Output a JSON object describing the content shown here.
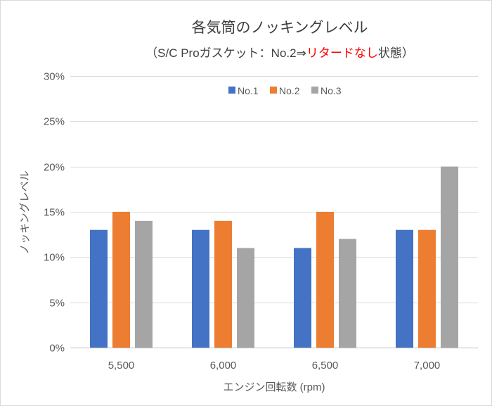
{
  "chart_data": {
    "type": "bar",
    "title": "各気筒のノッキングレベル",
    "subtitle": {
      "prefix": "（S/C Proガスケット：No.2⇒",
      "highlight": "リタードなし",
      "suffix": "状態）"
    },
    "xlabel": "エンジン回転数 (rpm)",
    "ylabel": "ノッキングレベル",
    "categories": [
      "5,500",
      "6,000",
      "6,500",
      "7,000"
    ],
    "series": [
      {
        "name": "No.1",
        "color": "#4472C4",
        "values": [
          13,
          13,
          11,
          13
        ]
      },
      {
        "name": "No.2",
        "color": "#ED7D31",
        "values": [
          15,
          14,
          15,
          13
        ]
      },
      {
        "name": "No.3",
        "color": "#A5A5A5",
        "values": [
          14,
          11,
          12,
          20
        ]
      }
    ],
    "ylim": [
      0,
      30
    ],
    "yticks": [
      {
        "value": 0,
        "label": "0%"
      },
      {
        "value": 5,
        "label": "5%"
      },
      {
        "value": 10,
        "label": "10%"
      },
      {
        "value": 15,
        "label": "15%"
      },
      {
        "value": 20,
        "label": "20%"
      },
      {
        "value": 25,
        "label": "25%"
      },
      {
        "value": 30,
        "label": "30%"
      }
    ],
    "grid": true,
    "legend": "top-center"
  },
  "colors": {
    "grid": "#D9D9D9",
    "axis": "#BFBFBF",
    "border": "#D9D9D9",
    "highlight": "#FF0000"
  }
}
